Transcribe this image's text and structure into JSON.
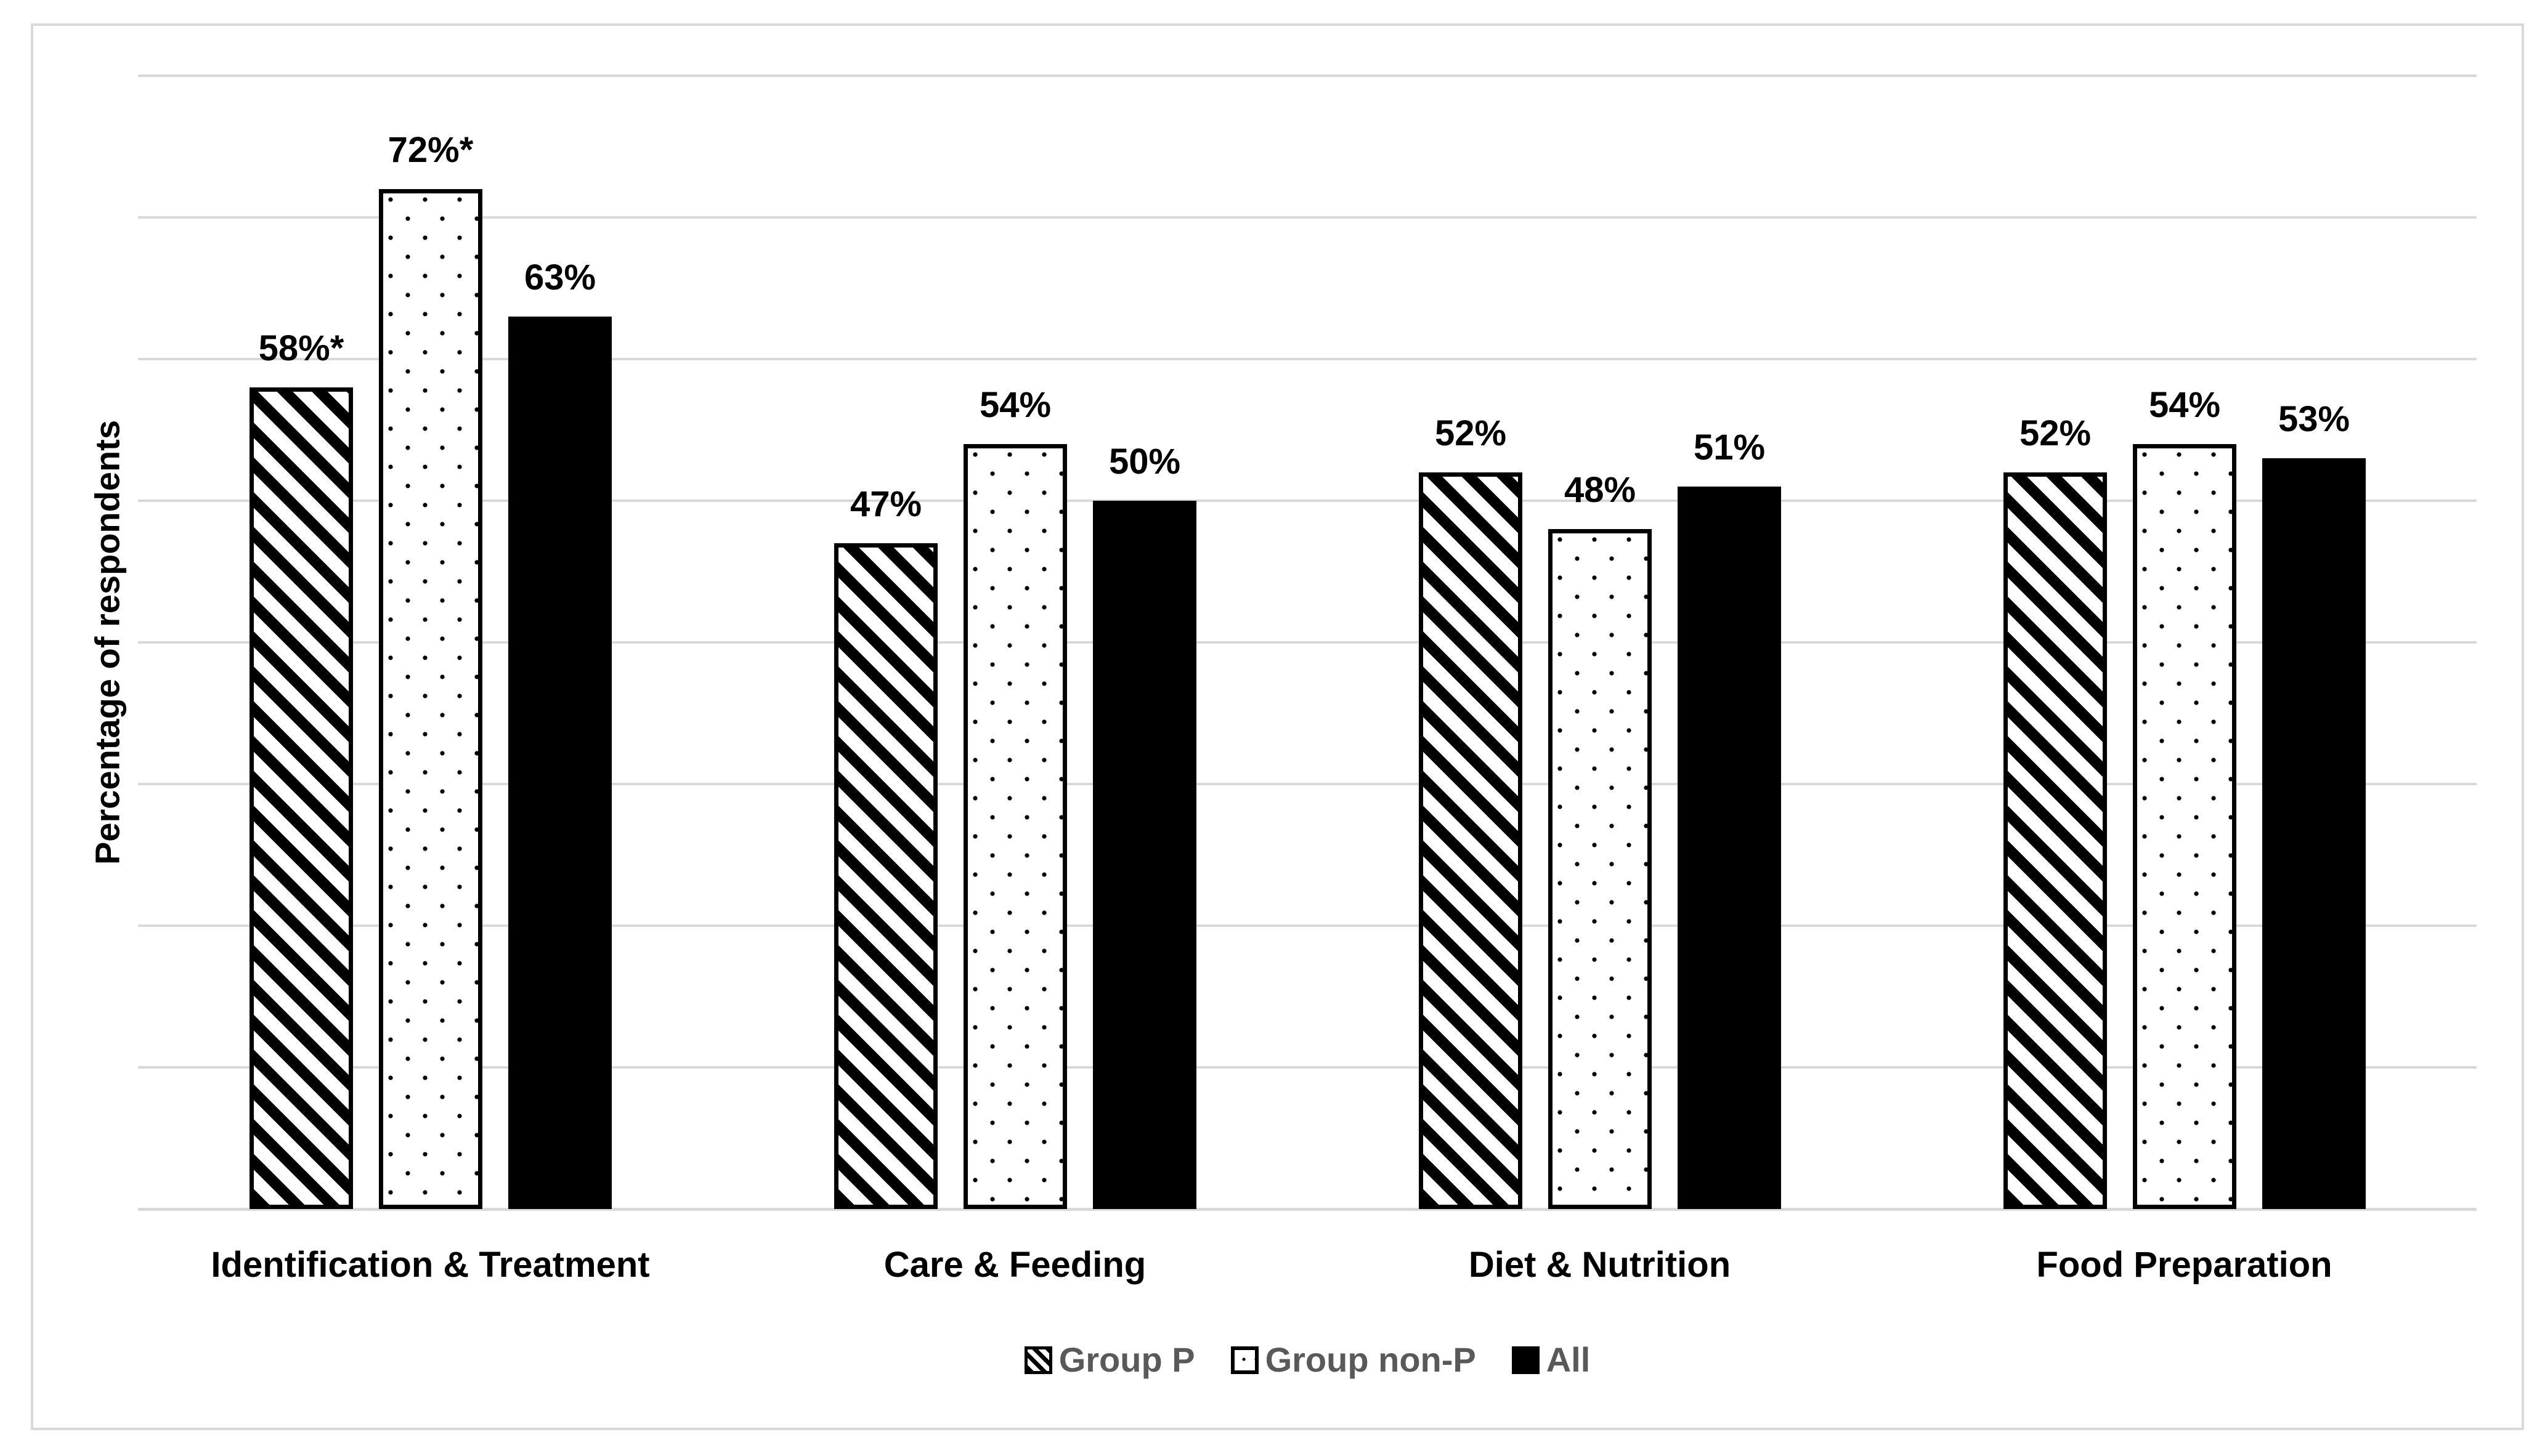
{
  "chart_data": {
    "type": "bar",
    "title": "",
    "xlabel": "",
    "ylabel": "Percentage of respondents",
    "ylim": [
      0,
      80
    ],
    "gridline_step": 10,
    "grid": true,
    "legend_position": "bottom-center",
    "categories": [
      "Identification & Treatment",
      "Care & Feeding",
      "Diet & Nutrition",
      "Food Preparation"
    ],
    "series": [
      {
        "name": "Group P",
        "pattern": "diagonal-stripes",
        "values": [
          58,
          47,
          52,
          52
        ],
        "labels": [
          "58%*",
          "47%",
          "52%",
          "52%"
        ]
      },
      {
        "name": "Group non-P",
        "pattern": "dots",
        "values": [
          72,
          54,
          48,
          54
        ],
        "labels": [
          "72%*",
          "54%",
          "48%",
          "54%"
        ]
      },
      {
        "name": "All",
        "pattern": "solid-black",
        "values": [
          63,
          50,
          51,
          53
        ],
        "labels": [
          "63%",
          "50%",
          "51%",
          "53%"
        ]
      }
    ],
    "colors": {
      "bar_fill": "#000000",
      "background": "#ffffff",
      "gridline": "#d9d9d9",
      "frame_border": "#d9d9d9",
      "data_label_text": "#000000",
      "category_label_text": "#000000",
      "legend_text": "#595959"
    },
    "annotations": {
      "asterisk_note": "*"
    }
  }
}
